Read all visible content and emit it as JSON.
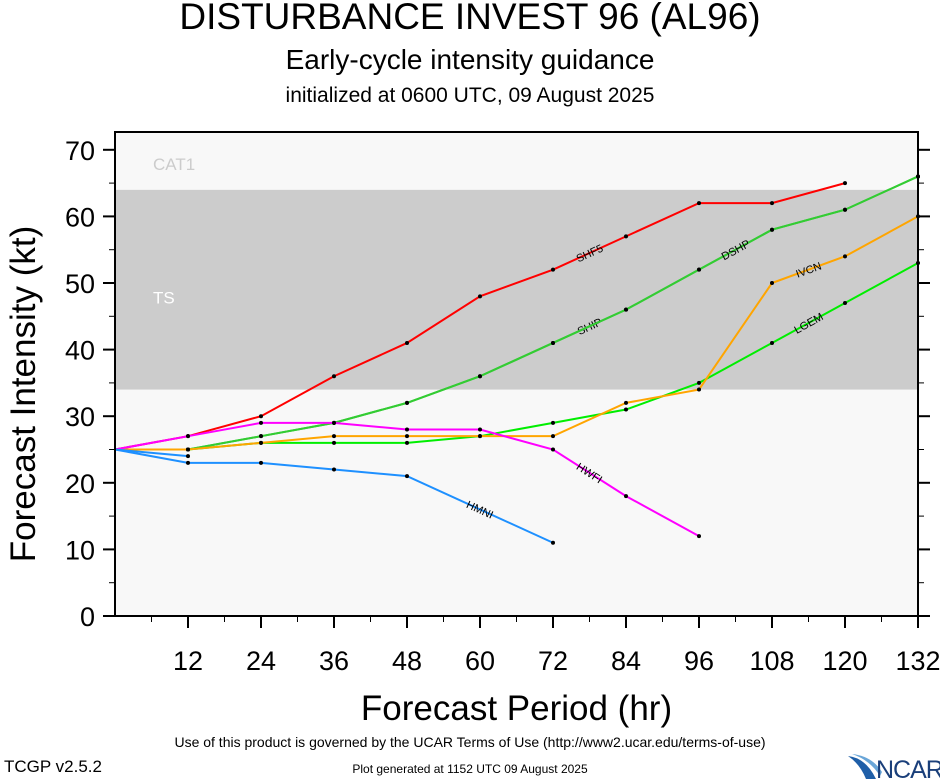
{
  "header": {
    "title": "DISTURBANCE INVEST 96 (AL96)",
    "subtitle": "Early-cycle intensity guidance",
    "initialized": "initialized at 0600 UTC, 09 August 2025"
  },
  "footer": {
    "terms": "Use of this product is governed by the UCAR Terms of Use (http://www2.ucar.edu/terms-of-use)",
    "version": "TCGP v2.5.2",
    "generated": "Plot generated at 1152 UTC   09 August 2025",
    "logo_text": "NCAR"
  },
  "chart_data": {
    "type": "line",
    "xlabel": "Forecast Period (hr)",
    "ylabel": "Forecast Intensity (kt)",
    "xlim": [
      0,
      132
    ],
    "ylim": [
      0,
      70
    ],
    "x_ticks": [
      12,
      24,
      36,
      48,
      60,
      72,
      84,
      96,
      108,
      120,
      132
    ],
    "y_ticks": [
      0,
      10,
      20,
      30,
      40,
      50,
      60,
      70
    ],
    "bands": [
      {
        "name": "TS",
        "from": 34,
        "to": 64,
        "color": "#cccccc"
      },
      {
        "name": "CAT1",
        "from": 64,
        "to": 70,
        "color": "#f8f8f8"
      }
    ],
    "background": "#f8f8f8",
    "series": [
      {
        "name": "SHF5",
        "color": "#ff0000",
        "x": [
          0,
          12,
          24,
          36,
          48,
          60,
          72,
          84,
          96,
          108,
          120
        ],
        "y": [
          25,
          27,
          30,
          36,
          41,
          48,
          52,
          57,
          62,
          62,
          65
        ]
      },
      {
        "name": "SHIP",
        "color": "#33cc33",
        "x": [
          0,
          12,
          24,
          36,
          48,
          60,
          72,
          84,
          96,
          108,
          120,
          132
        ],
        "y": [
          25,
          25,
          27,
          29,
          32,
          36,
          41,
          46,
          52,
          58,
          61,
          66
        ]
      },
      {
        "name": "DSHP",
        "color": "#33cc33",
        "x": [
          0,
          12,
          24,
          36,
          48,
          60,
          72,
          84,
          96,
          108,
          120,
          132
        ],
        "y": [
          25,
          25,
          27,
          29,
          32,
          36,
          41,
          46,
          52,
          58,
          61,
          66
        ]
      },
      {
        "name": "LGEM",
        "color": "#00ee00",
        "x": [
          0,
          12,
          24,
          36,
          48,
          60,
          72,
          84,
          96,
          108,
          120,
          132
        ],
        "y": [
          25,
          25,
          26,
          26,
          26,
          27,
          29,
          31,
          35,
          41,
          47,
          53
        ]
      },
      {
        "name": "IVCN",
        "color": "#ffa500",
        "x": [
          0,
          12,
          24,
          36,
          48,
          60,
          72,
          84,
          96,
          108,
          120,
          132
        ],
        "y": [
          25,
          25,
          26,
          27,
          27,
          27,
          27,
          32,
          34,
          50,
          54,
          60
        ]
      },
      {
        "name": "HWFI",
        "color": "#ff00ff",
        "x": [
          0,
          12,
          24,
          36,
          48,
          60,
          72,
          84,
          96
        ],
        "y": [
          25,
          27,
          29,
          29,
          28,
          28,
          25,
          18,
          12
        ]
      },
      {
        "name": "HMNI",
        "color": "#1e90ff",
        "x": [
          0,
          12,
          24,
          36,
          48,
          72
        ],
        "y": [
          25,
          23,
          23,
          22,
          21,
          11
        ]
      },
      {
        "name": "",
        "color": "#1e90ff",
        "x": [
          0,
          12
        ],
        "y": [
          25,
          24
        ]
      }
    ]
  }
}
